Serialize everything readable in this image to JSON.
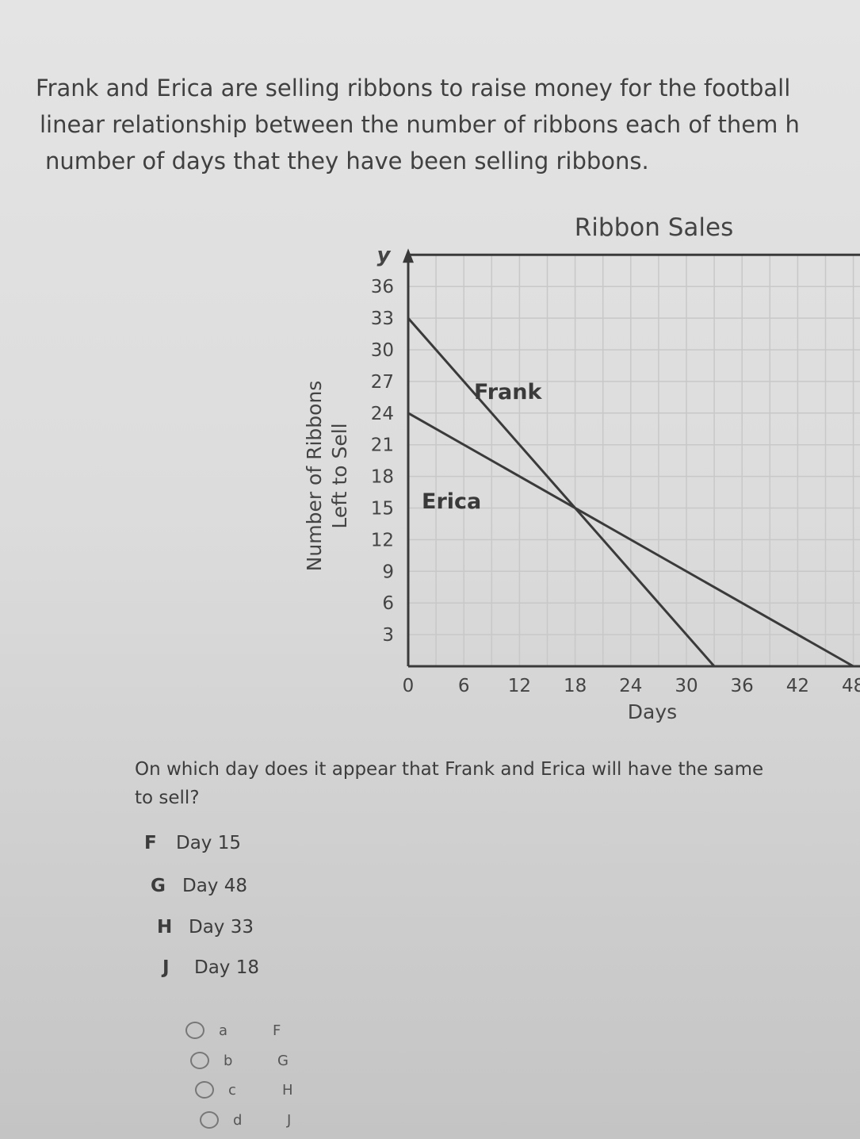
{
  "intro": {
    "lines": [
      "Frank and Erica are selling ribbons to raise money for the football",
      "linear relationship between the number of ribbons each of them h",
      "number of days that they have been selling ribbons."
    ]
  },
  "chart_data": {
    "type": "line",
    "title": "Ribbon Sales",
    "xlabel": "Days",
    "ylabel": "Number of Ribbons Left to Sell",
    "ylabel_lines": [
      "Number of Ribbons",
      "Left to Sell"
    ],
    "y_axis_letter": "y",
    "xlim": [
      0,
      48
    ],
    "ylim": [
      0,
      39
    ],
    "x_ticks": [
      "0",
      "6",
      "12",
      "18",
      "24",
      "30",
      "36",
      "42",
      "48"
    ],
    "y_ticks": [
      "3",
      "6",
      "9",
      "12",
      "15",
      "18",
      "21",
      "24",
      "27",
      "30",
      "33",
      "36"
    ],
    "grid": true,
    "grid_step": {
      "x": 3,
      "y": 3
    },
    "series": [
      {
        "name": "Frank",
        "points": [
          [
            0,
            33
          ],
          [
            33,
            0
          ]
        ]
      },
      {
        "name": "Erica",
        "points": [
          [
            0,
            24
          ],
          [
            48,
            0
          ]
        ]
      }
    ],
    "line_color": "#3a3a3a",
    "grid_color": "#c8c8c8"
  },
  "question": {
    "lines": [
      "On which day does it appear that Frank and Erica will have the same",
      "to sell?"
    ]
  },
  "choices": [
    {
      "letter": "F",
      "text": "Day 15"
    },
    {
      "letter": "G",
      "text": "Day 48"
    },
    {
      "letter": "H",
      "text": "Day 33"
    },
    {
      "letter": "J",
      "text": "Day 18"
    }
  ],
  "answer_options": [
    {
      "label": "a",
      "value": "F"
    },
    {
      "label": "b",
      "value": "G"
    },
    {
      "label": "c",
      "value": "H"
    },
    {
      "label": "d",
      "value": "J"
    }
  ]
}
